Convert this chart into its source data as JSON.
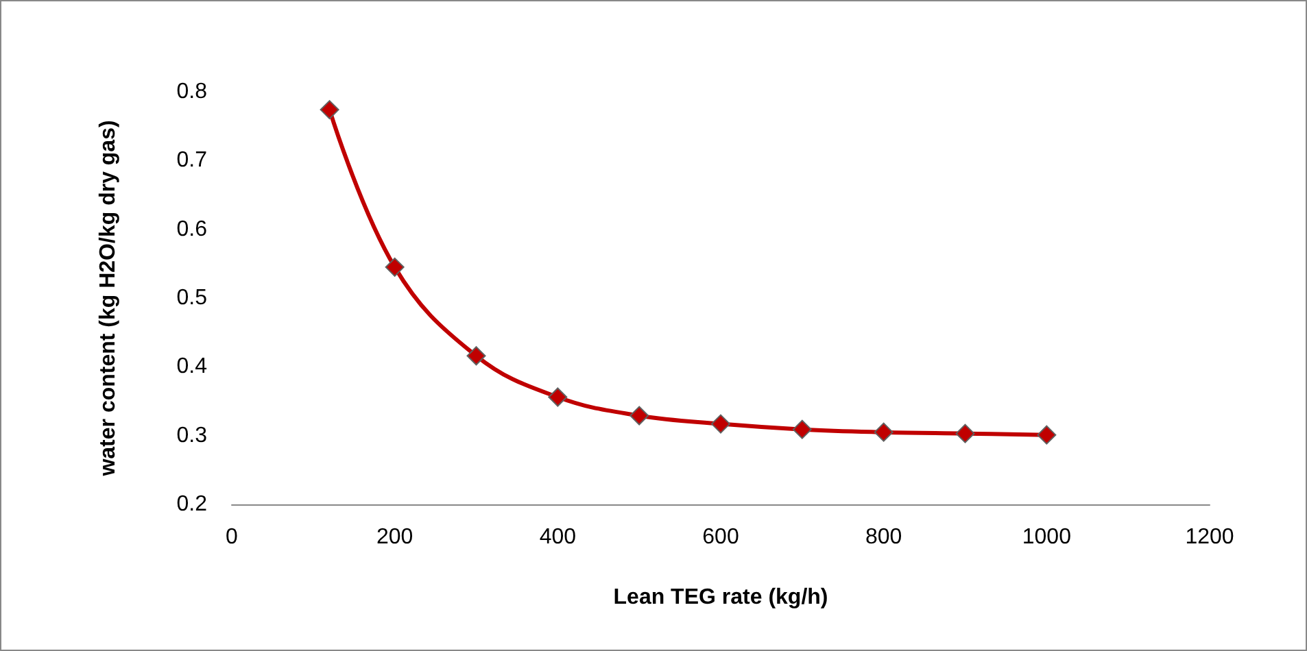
{
  "chart_data": {
    "type": "line",
    "xlabel": "Lean TEG rate (kg/h)",
    "ylabel": "water content (kg H2O/kg dry gas)",
    "x": [
      120,
      200,
      300,
      400,
      500,
      600,
      700,
      800,
      900,
      1000
    ],
    "series": [
      {
        "color": "#c00000",
        "values": [
          0.774,
          0.545,
          0.416,
          0.356,
          0.329,
          0.317,
          0.309,
          0.305,
          0.303,
          0.301
        ]
      }
    ],
    "xlim": [
      0,
      1200
    ],
    "xticks": [
      0,
      200,
      400,
      600,
      800,
      1000,
      1200
    ],
    "ylim": [
      0.2,
      0.8
    ],
    "yticks": [
      0.2,
      0.3,
      0.4,
      0.5,
      0.6,
      0.7,
      0.8
    ],
    "grid": false,
    "marker": "diamond",
    "line_style": "solid"
  }
}
